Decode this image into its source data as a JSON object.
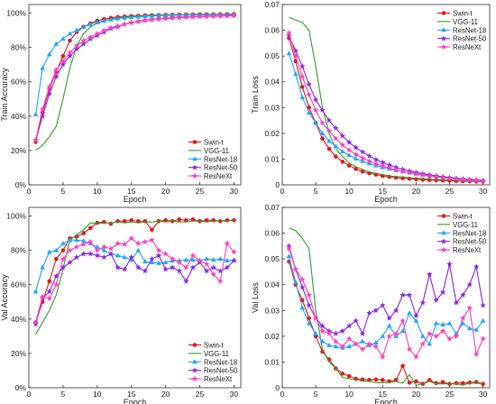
{
  "colors": {
    "Swin-t": "#e31a1c",
    "VGG-11": "#33a02c",
    "ResNet-18": "#1ea7ff",
    "ResNet-50": "#8a2be2",
    "ResNeXt": "#ff3fbf"
  },
  "markers": {
    "Swin-t": "circle",
    "VGG-11": "none",
    "ResNet-18": "triangle",
    "ResNet-50": "star",
    "ResNeXt": "star"
  },
  "chart_data": [
    {
      "id": "train-acc",
      "type": "line",
      "xlabel": "Epoch",
      "ylabel": "Train Accuracy",
      "xlim": [
        0,
        31
      ],
      "ylim": [
        0,
        1.05
      ],
      "xticks": [
        0,
        5,
        10,
        15,
        20,
        25,
        30
      ],
      "yticks": [
        0,
        0.2,
        0.4,
        0.6,
        0.8,
        1.0
      ],
      "ytick_labels": [
        "0%",
        "20%",
        "40%",
        "60%",
        "80%",
        "100%"
      ],
      "grid": false,
      "legend_position": "bottom-right",
      "x": [
        1,
        2,
        3,
        4,
        5,
        6,
        7,
        8,
        9,
        10,
        11,
        12,
        13,
        14,
        15,
        16,
        17,
        18,
        19,
        20,
        21,
        22,
        23,
        24,
        25,
        26,
        27,
        28,
        29,
        30
      ],
      "series": [
        {
          "name": "Swin-t",
          "values": [
            0.25,
            0.42,
            0.56,
            0.66,
            0.75,
            0.84,
            0.89,
            0.92,
            0.94,
            0.955,
            0.965,
            0.972,
            0.977,
            0.98,
            0.983,
            0.985,
            0.987,
            0.988,
            0.989,
            0.99,
            0.991,
            0.991,
            0.992,
            0.992,
            0.993,
            0.993,
            0.993,
            0.994,
            0.994,
            0.994
          ]
        },
        {
          "name": "VGG-11",
          "values": [
            0.2,
            0.23,
            0.28,
            0.34,
            0.5,
            0.68,
            0.81,
            0.88,
            0.92,
            0.94,
            0.955,
            0.965,
            0.972,
            0.977,
            0.98,
            0.983,
            0.985,
            0.987,
            0.988,
            0.989,
            0.99,
            0.99,
            0.991,
            0.991,
            0.992,
            0.992,
            0.992,
            0.993,
            0.993,
            0.993
          ]
        },
        {
          "name": "ResNet-18",
          "values": [
            0.41,
            0.68,
            0.76,
            0.82,
            0.85,
            0.88,
            0.9,
            0.92,
            0.935,
            0.945,
            0.955,
            0.962,
            0.968,
            0.972,
            0.976,
            0.979,
            0.981,
            0.983,
            0.985,
            0.986,
            0.987,
            0.988,
            0.989,
            0.99,
            0.99,
            0.991,
            0.991,
            0.992,
            0.992,
            0.992
          ]
        },
        {
          "name": "ResNet-50",
          "values": [
            0.26,
            0.4,
            0.53,
            0.63,
            0.7,
            0.75,
            0.79,
            0.82,
            0.85,
            0.87,
            0.89,
            0.91,
            0.92,
            0.935,
            0.945,
            0.952,
            0.958,
            0.963,
            0.967,
            0.97,
            0.973,
            0.975,
            0.977,
            0.979,
            0.98,
            0.982,
            0.983,
            0.984,
            0.985,
            0.986
          ]
        },
        {
          "name": "ResNeXt",
          "values": [
            0.26,
            0.44,
            0.57,
            0.67,
            0.72,
            0.77,
            0.81,
            0.84,
            0.86,
            0.88,
            0.9,
            0.915,
            0.925,
            0.935,
            0.943,
            0.95,
            0.956,
            0.961,
            0.965,
            0.968,
            0.971,
            0.973,
            0.975,
            0.977,
            0.979,
            0.98,
            0.981,
            0.982,
            0.983,
            0.984
          ]
        }
      ]
    },
    {
      "id": "train-loss",
      "type": "line",
      "xlabel": "Epoch",
      "ylabel": "Train Loss",
      "xlim": [
        0,
        31
      ],
      "ylim": [
        0,
        0.07
      ],
      "xticks": [
        0,
        5,
        10,
        15,
        20,
        25,
        30
      ],
      "yticks": [
        0,
        0.01,
        0.02,
        0.03,
        0.04,
        0.05,
        0.06,
        0.07
      ],
      "ytick_labels": [
        "0",
        "0.01",
        "0.02",
        "0.03",
        "0.04",
        "0.05",
        "0.06",
        "0.07"
      ],
      "grid": false,
      "legend_position": "top-right",
      "x": [
        1,
        2,
        3,
        4,
        5,
        6,
        7,
        8,
        9,
        10,
        11,
        12,
        13,
        14,
        15,
        16,
        17,
        18,
        19,
        20,
        21,
        22,
        23,
        24,
        25,
        26,
        27,
        28,
        29,
        30
      ],
      "series": [
        {
          "name": "Swin-t",
          "values": [
            0.057,
            0.048,
            0.038,
            0.03,
            0.024,
            0.018,
            0.014,
            0.011,
            0.009,
            0.0075,
            0.0062,
            0.0052,
            0.0045,
            0.004,
            0.0035,
            0.0031,
            0.0028,
            0.0026,
            0.0024,
            0.0022,
            0.002,
            0.0019,
            0.0018,
            0.0017,
            0.0016,
            0.0015,
            0.0014,
            0.0014,
            0.0013,
            0.0013
          ]
        },
        {
          "name": "VGG-11",
          "values": [
            0.065,
            0.064,
            0.063,
            0.06,
            0.046,
            0.03,
            0.02,
            0.014,
            0.011,
            0.0085,
            0.007,
            0.006,
            0.005,
            0.0045,
            0.004,
            0.0035,
            0.0032,
            0.003,
            0.0028,
            0.0026,
            0.0024,
            0.0022,
            0.0021,
            0.002,
            0.0019,
            0.0018,
            0.0017,
            0.0016,
            0.0015,
            0.0015
          ]
        },
        {
          "name": "ResNet-18",
          "values": [
            0.051,
            0.043,
            0.034,
            0.028,
            0.024,
            0.02,
            0.017,
            0.015,
            0.013,
            0.0115,
            0.0102,
            0.0092,
            0.0083,
            0.0075,
            0.0068,
            0.0062,
            0.0057,
            0.0052,
            0.0048,
            0.0044,
            0.004,
            0.0037,
            0.0034,
            0.0031,
            0.0029,
            0.0026,
            0.0024,
            0.0022,
            0.002,
            0.0018
          ]
        },
        {
          "name": "ResNet-50",
          "values": [
            0.058,
            0.052,
            0.046,
            0.039,
            0.033,
            0.029,
            0.025,
            0.022,
            0.019,
            0.0165,
            0.0145,
            0.0128,
            0.0112,
            0.0098,
            0.0087,
            0.0077,
            0.0068,
            0.006,
            0.0054,
            0.0048,
            0.0043,
            0.0039,
            0.0035,
            0.0031,
            0.0028,
            0.0025,
            0.0023,
            0.0021,
            0.0019,
            0.0017
          ]
        },
        {
          "name": "ResNeXt",
          "values": [
            0.059,
            0.05,
            0.042,
            0.035,
            0.029,
            0.024,
            0.021,
            0.018,
            0.0155,
            0.0135,
            0.0118,
            0.0104,
            0.0092,
            0.0082,
            0.0073,
            0.0065,
            0.0058,
            0.0052,
            0.0047,
            0.0042,
            0.0038,
            0.0034,
            0.0031,
            0.0028,
            0.0025,
            0.0023,
            0.0021,
            0.0019,
            0.0017,
            0.0016
          ]
        }
      ]
    },
    {
      "id": "val-acc",
      "type": "line",
      "xlabel": "Epoch",
      "ylabel": "Val Accuracy",
      "xlim": [
        0,
        31
      ],
      "ylim": [
        0,
        1.05
      ],
      "xticks": [
        0,
        5,
        10,
        15,
        20,
        25,
        30
      ],
      "yticks": [
        0,
        0.2,
        0.4,
        0.6,
        0.8,
        1.0
      ],
      "ytick_labels": [
        "0%",
        "20%",
        "40%",
        "60%",
        "80%",
        "100%"
      ],
      "grid": false,
      "legend_position": "bottom-right",
      "x": [
        1,
        2,
        3,
        4,
        5,
        6,
        7,
        8,
        9,
        10,
        11,
        12,
        13,
        14,
        15,
        16,
        17,
        18,
        19,
        20,
        21,
        22,
        23,
        24,
        25,
        26,
        27,
        28,
        29,
        30
      ],
      "series": [
        {
          "name": "Swin-t",
          "values": [
            0.38,
            0.5,
            0.62,
            0.75,
            0.8,
            0.87,
            0.88,
            0.9,
            0.93,
            0.96,
            0.965,
            0.955,
            0.97,
            0.97,
            0.975,
            0.97,
            0.97,
            0.92,
            0.97,
            0.975,
            0.97,
            0.98,
            0.975,
            0.98,
            0.97,
            0.975,
            0.975,
            0.97,
            0.975,
            0.975
          ]
        },
        {
          "name": "VGG-11",
          "values": [
            0.31,
            0.38,
            0.45,
            0.54,
            0.69,
            0.86,
            0.89,
            0.92,
            0.96,
            0.955,
            0.96,
            0.96,
            0.965,
            0.96,
            0.965,
            0.96,
            0.965,
            0.965,
            0.97,
            0.965,
            0.97,
            0.965,
            0.965,
            0.97,
            0.97,
            0.965,
            0.97,
            0.97,
            0.97,
            0.975
          ]
        },
        {
          "name": "ResNet-18",
          "values": [
            0.56,
            0.7,
            0.79,
            0.8,
            0.84,
            0.86,
            0.86,
            0.855,
            0.84,
            0.82,
            0.8,
            0.78,
            0.77,
            0.76,
            0.745,
            0.8,
            0.735,
            0.73,
            0.725,
            0.73,
            0.74,
            0.74,
            0.745,
            0.745,
            0.74,
            0.75,
            0.745,
            0.75,
            0.74,
            0.745
          ]
        },
        {
          "name": "ResNet-50",
          "values": [
            0.37,
            0.52,
            0.56,
            0.65,
            0.7,
            0.73,
            0.76,
            0.78,
            0.78,
            0.77,
            0.76,
            0.78,
            0.7,
            0.69,
            0.76,
            0.7,
            0.68,
            0.75,
            0.77,
            0.69,
            0.7,
            0.68,
            0.62,
            0.7,
            0.73,
            0.68,
            0.7,
            0.68,
            0.7,
            0.74
          ]
        },
        {
          "name": "ResNeXt",
          "values": [
            0.38,
            0.53,
            0.52,
            0.6,
            0.75,
            0.8,
            0.82,
            0.835,
            0.85,
            0.8,
            0.82,
            0.81,
            0.84,
            0.835,
            0.87,
            0.84,
            0.85,
            0.86,
            0.8,
            0.78,
            0.75,
            0.73,
            0.7,
            0.77,
            0.74,
            0.72,
            0.66,
            0.62,
            0.84,
            0.79
          ]
        }
      ]
    },
    {
      "id": "val-loss",
      "type": "line",
      "xlabel": "Epoch",
      "ylabel": "Val Loss",
      "xlim": [
        0,
        31
      ],
      "ylim": [
        0,
        0.07
      ],
      "xticks": [
        0,
        5,
        10,
        15,
        20,
        25,
        30
      ],
      "yticks": [
        0,
        0.01,
        0.02,
        0.03,
        0.04,
        0.05,
        0.06,
        0.07
      ],
      "ytick_labels": [
        "0",
        "0.01",
        "0.02",
        "0.03",
        "0.04",
        "0.05",
        "0.06",
        "0.07"
      ],
      "grid": false,
      "legend_position": "top-right",
      "x": [
        1,
        2,
        3,
        4,
        5,
        6,
        7,
        8,
        9,
        10,
        11,
        12,
        13,
        14,
        15,
        16,
        17,
        18,
        19,
        20,
        21,
        22,
        23,
        24,
        25,
        26,
        27,
        28,
        29,
        30
      ],
      "series": [
        {
          "name": "Swin-t",
          "values": [
            0.049,
            0.04,
            0.034,
            0.027,
            0.02,
            0.014,
            0.011,
            0.0075,
            0.0055,
            0.0045,
            0.0035,
            0.0032,
            0.003,
            0.0032,
            0.003,
            0.0025,
            0.003,
            0.0085,
            0.002,
            0.0025,
            0.0015,
            0.003,
            0.0018,
            0.0022,
            0.0015,
            0.0018,
            0.0018,
            0.002,
            0.0022,
            0.0015
          ]
        },
        {
          "name": "VGG-11",
          "values": [
            0.062,
            0.061,
            0.058,
            0.054,
            0.03,
            0.015,
            0.01,
            0.0075,
            0.004,
            0.0035,
            0.0032,
            0.0025,
            0.0025,
            0.002,
            0.002,
            0.002,
            0.0025,
            0.0018,
            0.005,
            0.001,
            0.0015,
            0.0025,
            0.0015,
            0.0015,
            0.0015,
            0.0015,
            0.001,
            0.0018,
            0.0018,
            0.0015
          ]
        },
        {
          "name": "ResNet-18",
          "values": [
            0.051,
            0.041,
            0.031,
            0.025,
            0.021,
            0.018,
            0.0165,
            0.016,
            0.0155,
            0.016,
            0.017,
            0.018,
            0.0165,
            0.0175,
            0.02,
            0.024,
            0.02,
            0.022,
            0.029,
            0.026,
            0.02,
            0.017,
            0.025,
            0.0245,
            0.025,
            0.021,
            0.025,
            0.023,
            0.0225,
            0.026
          ]
        },
        {
          "name": "ResNet-50",
          "values": [
            0.055,
            0.046,
            0.039,
            0.032,
            0.027,
            0.024,
            0.022,
            0.021,
            0.022,
            0.024,
            0.026,
            0.021,
            0.029,
            0.03,
            0.032,
            0.027,
            0.03,
            0.036,
            0.036,
            0.028,
            0.033,
            0.044,
            0.034,
            0.037,
            0.048,
            0.033,
            0.036,
            0.04,
            0.047,
            0.032
          ]
        },
        {
          "name": "ResNeXt",
          "values": [
            0.054,
            0.046,
            0.042,
            0.036,
            0.027,
            0.022,
            0.021,
            0.018,
            0.016,
            0.019,
            0.017,
            0.015,
            0.017,
            0.016,
            0.012,
            0.02,
            0.021,
            0.026,
            0.015,
            0.012,
            0.017,
            0.021,
            0.02,
            0.022,
            0.019,
            0.02,
            0.027,
            0.031,
            0.013,
            0.019
          ]
        }
      ]
    }
  ]
}
